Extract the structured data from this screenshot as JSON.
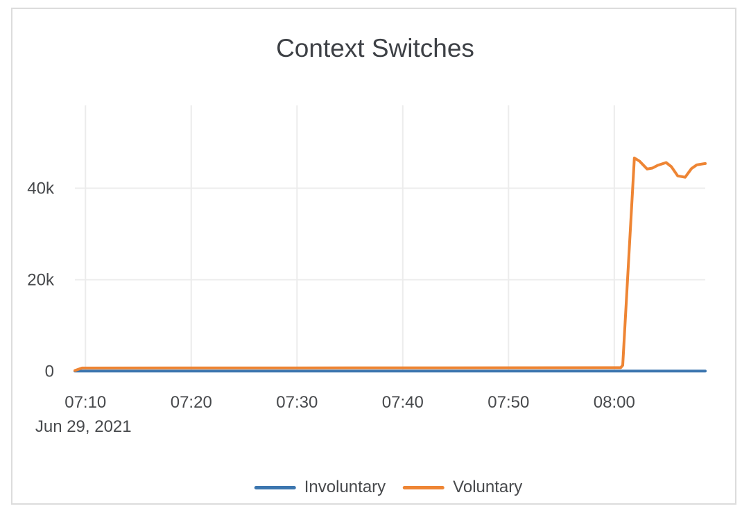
{
  "chart_data": {
    "type": "line",
    "title": "Context Switches",
    "grid": true,
    "legend_position": "bottom",
    "x_axis": {
      "date_label": "Jun 29, 2021",
      "tick_labels": [
        "07:10",
        "07:20",
        "07:30",
        "07:40",
        "07:50",
        "08:00"
      ],
      "range": [
        "07:09:00",
        "08:08:36"
      ]
    },
    "y_axis": {
      "ticks": [
        {
          "label": "0",
          "value": 0
        },
        {
          "label": "20k",
          "value": 20000
        },
        {
          "label": "40k",
          "value": 40000
        }
      ],
      "range": [
        0,
        58000
      ]
    },
    "series": [
      {
        "name": "Involuntary",
        "color": "#3c76af",
        "points": [
          [
            "07:09:00",
            30
          ],
          [
            "08:08:36",
            30
          ]
        ]
      },
      {
        "name": "Voluntary",
        "color": "#ee8534",
        "points": [
          [
            "07:09:00",
            150
          ],
          [
            "07:09:40",
            700
          ],
          [
            "07:30:00",
            730
          ],
          [
            "08:00:36",
            780
          ],
          [
            "08:00:48",
            1300
          ],
          [
            "08:01:54",
            46600
          ],
          [
            "08:02:24",
            45900
          ],
          [
            "08:03:06",
            44200
          ],
          [
            "08:03:36",
            44400
          ],
          [
            "08:04:06",
            45000
          ],
          [
            "08:04:54",
            45600
          ],
          [
            "08:05:24",
            44700
          ],
          [
            "08:06:00",
            42700
          ],
          [
            "08:06:42",
            42400
          ],
          [
            "08:07:18",
            44300
          ],
          [
            "08:07:48",
            45100
          ],
          [
            "08:08:36",
            45400
          ]
        ]
      }
    ],
    "style": {
      "grid_color": "#ececec",
      "tick_color": "#47494c",
      "title_color": "#3d4045"
    }
  }
}
